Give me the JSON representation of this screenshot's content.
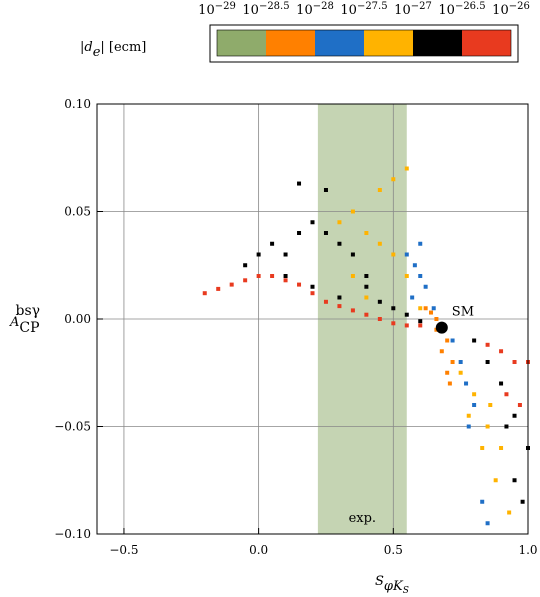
{
  "chart_data": {
    "type": "scatter",
    "xlabel": {
      "main": "S",
      "sub": "φK",
      "subsub": "S"
    },
    "ylabel": {
      "main": "A",
      "sub": "CP",
      "sup": "bsγ"
    },
    "xlim": [
      -0.6,
      1.0
    ],
    "ylim": [
      -0.1,
      0.1
    ],
    "xticks": [
      {
        "value": -0.5,
        "label": "−0.5"
      },
      {
        "value": 0,
        "label": "0.0"
      },
      0.5,
      {
        "value": 1.0,
        "label": "1.0"
      }
    ],
    "yticks": [
      {
        "value": -0.1,
        "label": "−0.10"
      },
      {
        "value": -0.05,
        "label": "−0.05"
      },
      {
        "value": 0,
        "label": "0.00"
      },
      {
        "value": 0.05,
        "label": "0.05"
      },
      {
        "value": 0.1,
        "label": "0.10"
      }
    ],
    "grid": true,
    "band": {
      "xrange": [
        0.22,
        0.55
      ],
      "color": "#c5d4b3",
      "label": "exp."
    },
    "sm": {
      "x": 0.68,
      "y": -0.004,
      "label": "SM"
    },
    "colorbar": {
      "label": "|d",
      "label_sub": "e",
      "label_rest": "|  [ecm]",
      "tick_base": "10",
      "tick_exponents": [
        "−29",
        "−28.5",
        "−28",
        "−27.5",
        "−27",
        "−26.5",
        "−26"
      ],
      "colors": [
        "#8fab6b",
        "#ff8000",
        "#1f6fc6",
        "#ffb300",
        "#000000",
        "#e83a1f"
      ]
    },
    "series": [
      {
        "color": "#e83a1f",
        "x": [
          -0.2,
          -0.15,
          -0.1,
          -0.05,
          0,
          0.05,
          0.1,
          0.15,
          0.2,
          0.25,
          0.3,
          0.35,
          0.4,
          0.45,
          0.5,
          0.55,
          0.6,
          0.85,
          0.9,
          0.95,
          1.0,
          0.92,
          0.97
        ],
        "y": [
          0.012,
          0.014,
          0.016,
          0.018,
          0.02,
          0.02,
          0.018,
          0.016,
          0.012,
          0.008,
          0.006,
          0.004,
          0.002,
          0.0,
          -0.002,
          -0.003,
          -0.003,
          -0.012,
          -0.015,
          -0.02,
          -0.02,
          -0.035,
          -0.04
        ]
      },
      {
        "color": "#000000",
        "x": [
          -0.05,
          0,
          0.05,
          0.1,
          0.15,
          0.2,
          0.25,
          0.3,
          0.35,
          0.4,
          0.1,
          0.2,
          0.3,
          0.25,
          0.15,
          0.4,
          0.45,
          0.5,
          0.55,
          0.6,
          0.8,
          0.85,
          0.9,
          0.95,
          1.0,
          0.95,
          0.98,
          0.92
        ],
        "y": [
          0.025,
          0.03,
          0.035,
          0.03,
          0.04,
          0.045,
          0.04,
          0.035,
          0.03,
          0.02,
          0.02,
          0.015,
          0.01,
          0.06,
          0.063,
          0.015,
          0.008,
          0.005,
          0.002,
          -0.001,
          -0.01,
          -0.02,
          -0.03,
          -0.045,
          -0.06,
          -0.075,
          -0.085,
          -0.05
        ]
      },
      {
        "color": "#ffb300",
        "x": [
          0.3,
          0.35,
          0.4,
          0.45,
          0.5,
          0.55,
          0.35,
          0.45,
          0.5,
          0.4,
          0.55,
          0.6,
          0.75,
          0.8,
          0.85,
          0.9,
          0.78,
          0.83,
          0.88,
          0.93,
          0.86
        ],
        "y": [
          0.045,
          0.05,
          0.04,
          0.035,
          0.03,
          0.02,
          0.02,
          0.06,
          0.065,
          0.01,
          0.07,
          0.005,
          -0.025,
          -0.035,
          -0.05,
          -0.06,
          -0.045,
          -0.06,
          -0.075,
          -0.09,
          -0.04
        ]
      },
      {
        "color": "#1f6fc6",
        "x": [
          0.55,
          0.58,
          0.6,
          0.62,
          0.65,
          0.57,
          0.6,
          0.72,
          0.75,
          0.77,
          0.8,
          0.78,
          0.85,
          0.83
        ],
        "y": [
          0.03,
          0.025,
          0.02,
          0.015,
          0.005,
          0.01,
          0.035,
          -0.01,
          -0.02,
          -0.03,
          -0.04,
          -0.05,
          -0.095,
          -0.085
        ]
      },
      {
        "color": "#ff8000",
        "x": [
          0.62,
          0.64,
          0.66,
          0.68,
          0.7,
          0.72,
          0.7,
          0.68,
          0.66,
          0.71
        ],
        "y": [
          0.005,
          0.003,
          0.0,
          -0.005,
          -0.01,
          -0.02,
          -0.025,
          -0.015,
          -0.005,
          -0.03
        ]
      }
    ]
  }
}
